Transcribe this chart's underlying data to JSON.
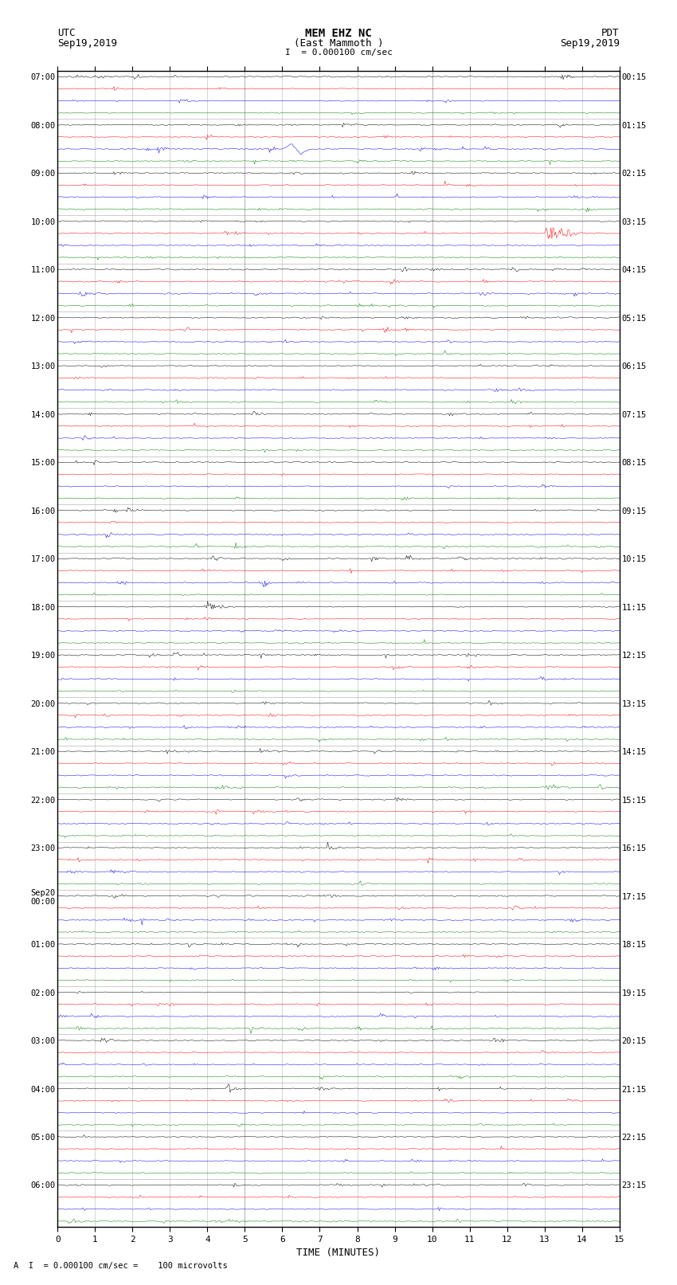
{
  "title_line1": "MEM EHZ NC",
  "title_line2": "(East Mammoth )",
  "scale_label": "I  = 0.000100 cm/sec",
  "bottom_label": "= 0.000100 cm/sec =    100 microvolts",
  "xlabel": "TIME (MINUTES)",
  "left_header_line1": "UTC",
  "left_header_line2": "Sep19,2019",
  "right_header_line1": "PDT",
  "right_header_line2": "Sep19,2019",
  "bg_color": "#ffffff",
  "grid_color": "#888888",
  "trace_colors": [
    "black",
    "red",
    "blue",
    "green"
  ],
  "num_hour_blocks": 24,
  "traces_per_block": 4,
  "minutes_per_row": 15,
  "samples_per_minute": 40,
  "noise_base": 0.03,
  "left_time_labels": [
    "07:00",
    "08:00",
    "09:00",
    "10:00",
    "11:00",
    "12:00",
    "13:00",
    "14:00",
    "15:00",
    "16:00",
    "17:00",
    "18:00",
    "19:00",
    "20:00",
    "21:00",
    "22:00",
    "23:00",
    "Sep20\n00:00",
    "01:00",
    "02:00",
    "03:00",
    "04:00",
    "05:00",
    "06:00"
  ],
  "right_time_labels": [
    "00:15",
    "01:15",
    "02:15",
    "03:15",
    "04:15",
    "05:15",
    "06:15",
    "07:15",
    "08:15",
    "09:15",
    "10:15",
    "11:15",
    "12:15",
    "13:15",
    "14:15",
    "15:15",
    "16:15",
    "17:15",
    "18:15",
    "19:15",
    "20:15",
    "21:15",
    "22:15",
    "23:15"
  ]
}
